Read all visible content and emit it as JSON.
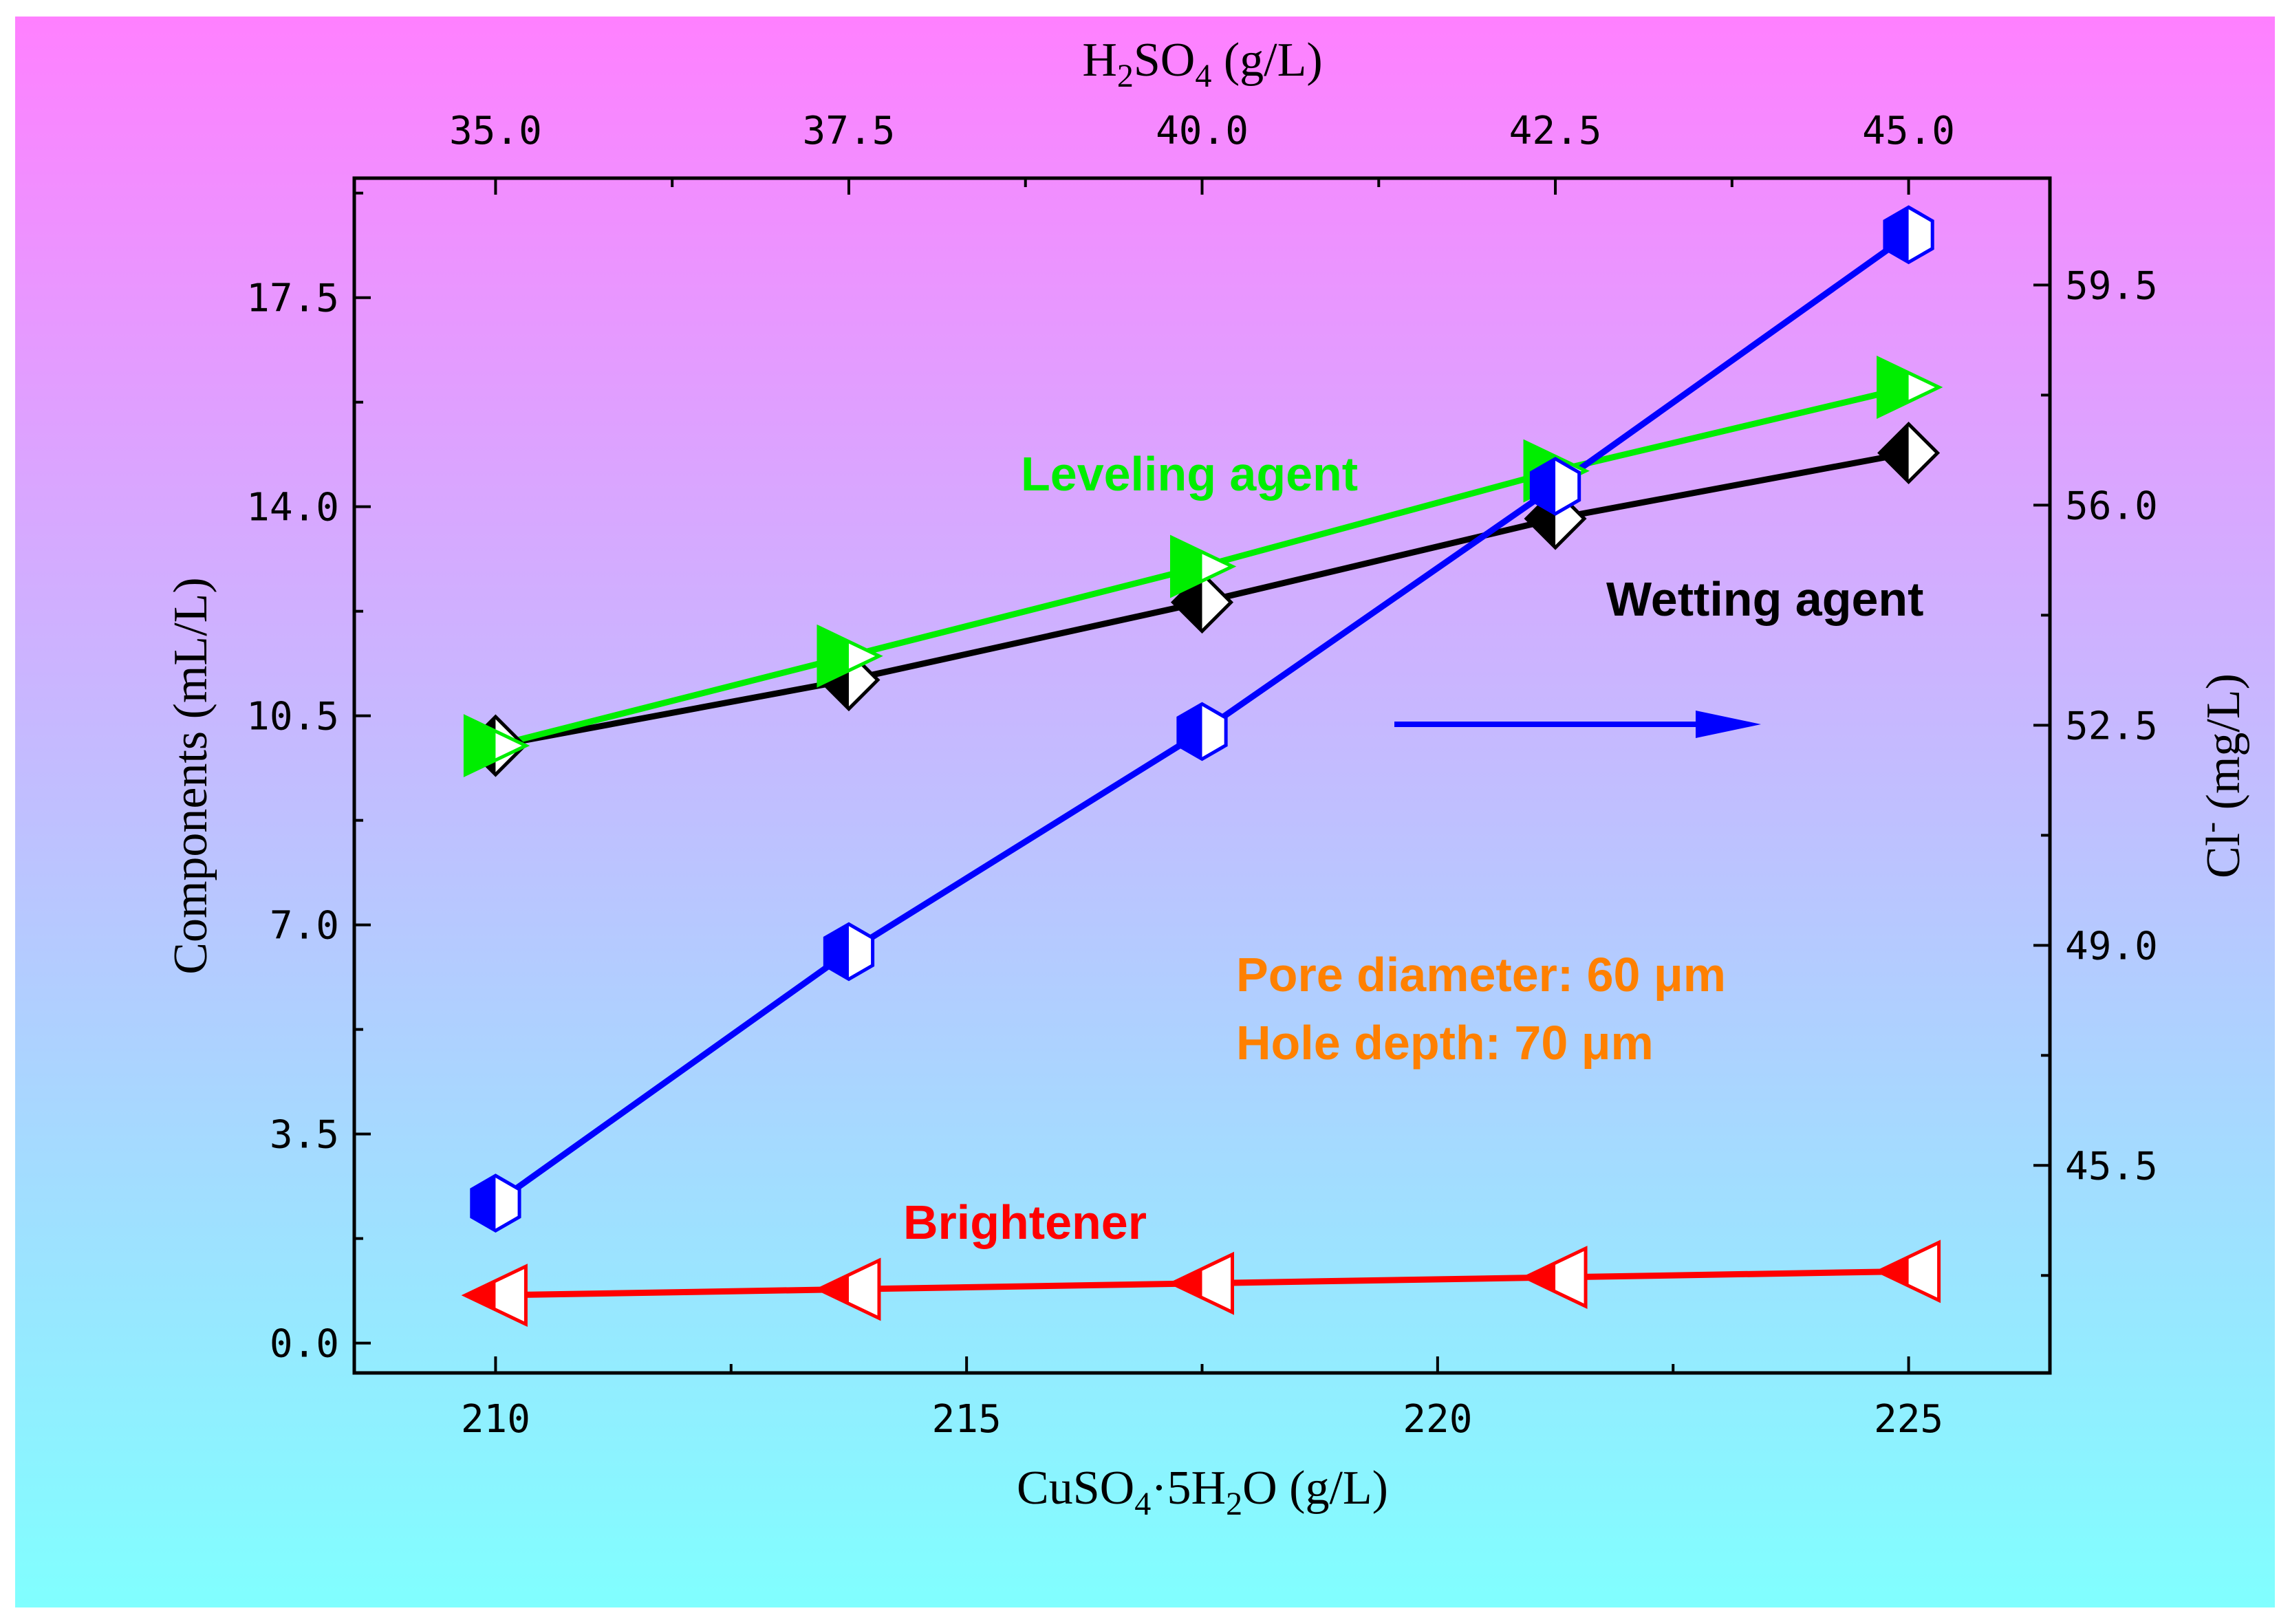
{
  "chart_data": {
    "type": "line",
    "bottom_axis": {
      "label_main": "CuSO",
      "label_sub1": "4",
      "label_mid": "·5H",
      "label_sub2": "2",
      "label_end": "O (g/L)",
      "range": [
        208.5,
        226.5
      ],
      "major_ticks": [
        210,
        215,
        220,
        225
      ],
      "tick_labels": [
        "210",
        "215",
        "220",
        "225"
      ]
    },
    "top_axis": {
      "label_main": "H",
      "label_sub1": "2",
      "label_mid": "SO",
      "label_sub2": "4",
      "label_end": " (g/L)",
      "tick_labels": [
        "35.0",
        "37.5",
        "40.0",
        "42.5",
        "45.0"
      ],
      "tick_positions_x": [
        210,
        213.75,
        217.5,
        221.25,
        225
      ]
    },
    "left_axis": {
      "label": "Components (mL/L)",
      "range": [
        -0.5,
        19.5
      ],
      "major_ticks": [
        0.0,
        3.5,
        7.0,
        10.5,
        14.0,
        17.5
      ],
      "tick_labels": [
        "0.0",
        "3.5",
        "7.0",
        "10.5",
        "14.0",
        "17.5"
      ]
    },
    "right_axis": {
      "label_main": "Cl",
      "label_sup": "-",
      "label_end": " (mg/L)",
      "range": [
        42.2,
        61.2
      ],
      "major_ticks": [
        45.5,
        49.0,
        52.5,
        56.0,
        59.5
      ],
      "tick_labels": [
        "45.5",
        "49.0",
        "52.5",
        "56.0",
        "59.5"
      ]
    },
    "x": [
      210,
      213.75,
      217.5,
      221.25,
      225
    ],
    "series": [
      {
        "name": "Wetting agent",
        "axis": "left",
        "color": "#000000",
        "marker": "diamond",
        "values": [
          10.0,
          11.1,
          12.4,
          13.8,
          14.9
        ]
      },
      {
        "name": "Leveling agent",
        "axis": "left",
        "color": "#00ee00",
        "marker": "triangle-right",
        "values": [
          10.0,
          11.5,
          13.0,
          14.6,
          16.0
        ]
      },
      {
        "name": "Brightener",
        "axis": "left",
        "color": "#ff0000",
        "marker": "triangle-left",
        "values": [
          0.8,
          0.9,
          1.0,
          1.1,
          1.2
        ]
      },
      {
        "name": "Cl-",
        "axis": "right",
        "color": "#0000ff",
        "marker": "hexagon",
        "values": [
          44.9,
          48.9,
          52.4,
          56.3,
          60.3
        ]
      }
    ],
    "annotations": {
      "leveling_label": "Leveling agent",
      "wetting_label": "Wetting agent",
      "brightener_label": "Brightener",
      "pore_text": "Pore diameter: 60 μm",
      "depth_text": "Hole depth: 70 μm"
    },
    "colors": {
      "bg_top": "#ff80ff",
      "bg_bottom": "#80ffff",
      "orange": "#ff8000"
    }
  }
}
